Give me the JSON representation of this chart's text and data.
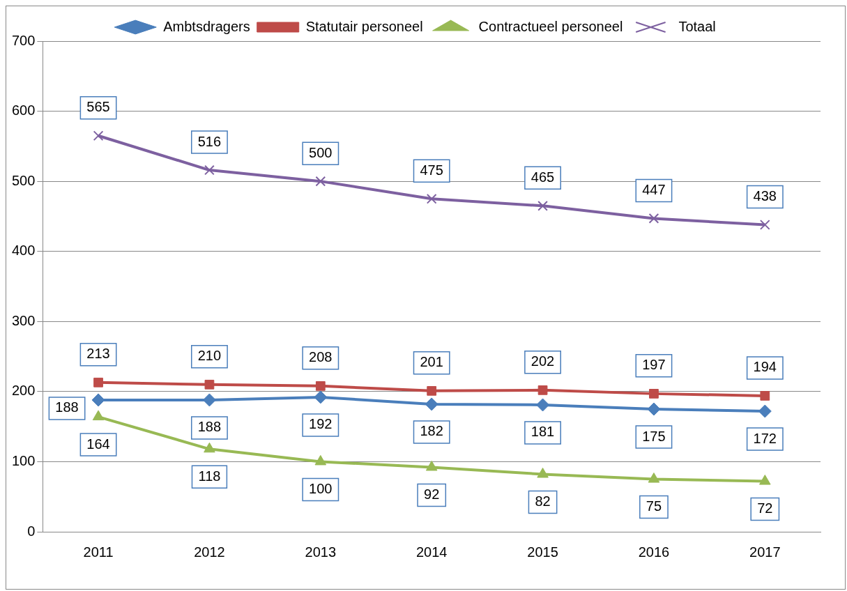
{
  "chart_data": {
    "type": "line",
    "categories": [
      "2011",
      "2012",
      "2013",
      "2014",
      "2015",
      "2016",
      "2017"
    ],
    "series": [
      {
        "name": "Ambtsdragers",
        "color": "#4a7ebb",
        "marker": "diamond",
        "values": [
          188,
          188,
          192,
          182,
          181,
          175,
          172
        ]
      },
      {
        "name": "Statutair personeel",
        "color": "#be4b48",
        "marker": "square",
        "values": [
          213,
          210,
          208,
          201,
          202,
          197,
          194
        ]
      },
      {
        "name": "Contractueel personeel",
        "color": "#98b954",
        "marker": "triangle",
        "values": [
          164,
          118,
          100,
          92,
          82,
          75,
          72
        ]
      },
      {
        "name": "Totaal",
        "color": "#7d60a0",
        "marker": "cross",
        "values": [
          565,
          516,
          500,
          475,
          465,
          447,
          438
        ]
      }
    ],
    "ylim": [
      0,
      700
    ],
    "yticks": [
      0,
      100,
      200,
      300,
      400,
      500,
      600,
      700
    ],
    "grid": "y",
    "legend": "top",
    "data_labels": true,
    "line_style": "solid"
  }
}
